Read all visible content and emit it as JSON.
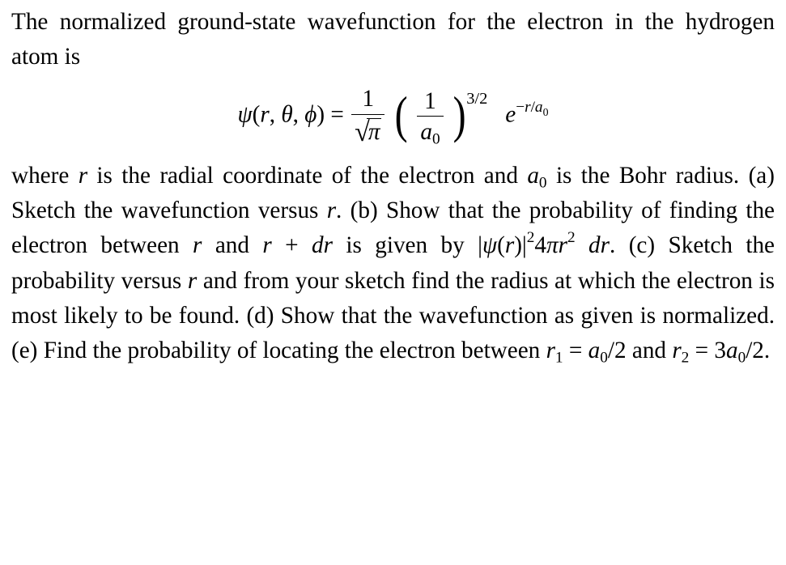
{
  "intro_before": "The normalized ground-state wavefunction for the electron in the hydrogen atom is",
  "equation": {
    "lhs_psi": "ψ",
    "args_open": "(",
    "arg_r": "r",
    "comma1": ", ",
    "arg_theta": "θ",
    "comma2": ", ",
    "arg_phi": "ϕ",
    "args_close": ")",
    "eq": " = ",
    "frac1_num": "1",
    "sqrt_sym": "√",
    "sqrt_arg": "π",
    "paren_open": "(",
    "frac2_num": "1",
    "frac2_den_a": "a",
    "frac2_den_sub": "0",
    "paren_close": ")",
    "outer_exp": "3/2",
    "e": "e",
    "exp_minus": "−",
    "exp_r": "r",
    "exp_slash": "/",
    "exp_a": "a",
    "exp_a_sub": "0"
  },
  "after1": "where ",
  "r_var": "r",
  "after2": " is the radial coordinate of the electron and ",
  "a_var": "a",
  "zero_sub": "0",
  "after3": " is the Bohr radius. (a) Sketch the wavefunction versus ",
  "after4": ". (b) Show that the probability of finding the electron between ",
  "and_word": " and ",
  "plus": " + ",
  "dr_d": "d",
  "dr_r": "r",
  "after5": " is given by ",
  "bar": "|",
  "psi": "ψ",
  "open_paren": "(",
  "close_paren": ")",
  "sq": "2",
  "four": "4",
  "pi": "π",
  "after6": ". (c) Sketch the probability versus ",
  "after7": " and from your sketch find the radius at which the electron is most likely to be found. (d) Show that the wavefunction as given is normalized. (e) Find the probability of locating the electron between ",
  "one_sub": "1",
  "eq_sym": " = ",
  "half_text": "/2",
  "two_sub": "2",
  "three": "3",
  "period": "."
}
